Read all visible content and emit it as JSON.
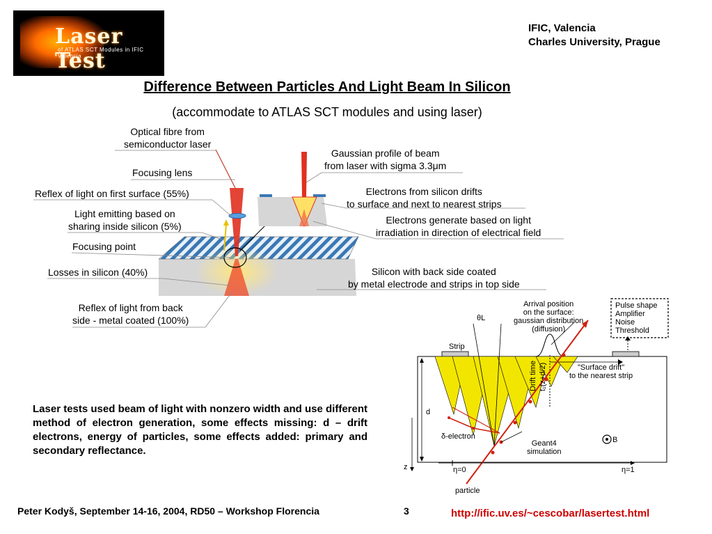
{
  "header": {
    "logo_title": "Laser Test",
    "logo_subtitle": "of ATLAS SCT Modules in IFIC Valencia",
    "institutions": [
      "IFIC, Valencia",
      "Charles University, Prague"
    ]
  },
  "slide": {
    "title": "Difference Between Particles And Light Beam In Silicon",
    "subtitle": "(accommodate to ATLAS SCT modules and using laser)"
  },
  "diagram_labels": {
    "optical_fibre": [
      "Optical fibre from",
      "semiconductor laser"
    ],
    "focusing_lens": "Focusing lens",
    "reflex_first": "Reflex of light on first surface (55%)",
    "light_emitting": [
      "Light emitting based on",
      "sharing inside silicon (5%)"
    ],
    "focusing_point": "Focusing point",
    "losses": "Losses in silicon (40%)",
    "reflex_back": [
      "Reflex of light from back",
      "side - metal coated (100%)"
    ],
    "gaussian": [
      "Gaussian profile of beam",
      "from laser with sigma 3.3μm"
    ],
    "electrons_drift": [
      "Electrons from silicon drifts",
      "to surface and next to nearest strips"
    ],
    "electrons_generate": [
      "Electrons generate based on light",
      "irradiation in direction of electrical field"
    ],
    "silicon_back": [
      "Silicon with back side coated",
      "by metal electrode and strips in top side"
    ]
  },
  "detector_labels": {
    "arrival": [
      "Arrival position",
      "on the surface:",
      "gaussian distribution",
      "(diffusion)"
    ],
    "readout": [
      "Pulse shape",
      "Amplifier",
      "Noise",
      "Threshold"
    ],
    "theta": "θL",
    "strip": "Strip",
    "drift_time": "Drift time",
    "drift_time2": "t₁(z+d/2)",
    "surface_drift": [
      "\"Surface drift\"",
      "to the nearest strip"
    ],
    "d": "d",
    "delta": "δ-electron",
    "geant": [
      "Geant4",
      "simulation"
    ],
    "b_field": "B",
    "z": "z",
    "eta0": "η=0",
    "eta1": "η=1",
    "particle": "particle"
  },
  "paragraph": "Laser tests used beam of light with nonzero width and use different method of electron generation, some effects missing: d – drift electrons, energy of particles, some effects added: primary and secondary reflectance.",
  "footer": {
    "author": "Peter Kodyš, September 14-16, 2004, RD50 – Workshop Florencia",
    "page": "3",
    "url": "http://ific.uv.es/~cescobar/lasertest.html"
  }
}
